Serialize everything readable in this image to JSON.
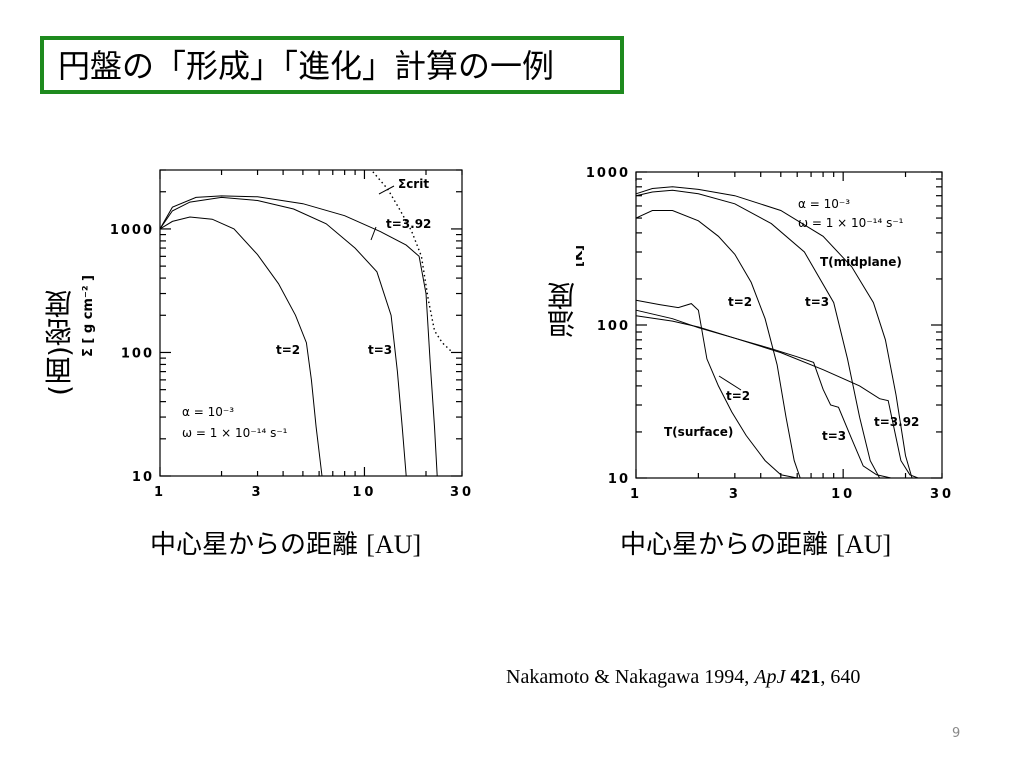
{
  "slide": {
    "title": "円盤の「形成」「進化」計算の一例",
    "citation_authors": "Nakamoto & Nakagawa 1994, ",
    "citation_journal": "ApJ",
    "citation_volume": "421",
    "citation_page": ", 640",
    "page_number": "9",
    "title_border_color": "#1e8a1e"
  },
  "chart_data": [
    {
      "type": "line",
      "ylabel_jp": "(面)密度",
      "ylabel_unit": "Σ [ g cm⁻² ]",
      "xlabel": "中心星からの距離",
      "xlabel_unit": "[AU]",
      "xscale": "log",
      "yscale": "log",
      "xlim": [
        1,
        30
      ],
      "ylim": [
        10,
        3000
      ],
      "xticks": [
        "1",
        "3",
        "10",
        "30"
      ],
      "yticks": [
        "10",
        "100",
        "1000"
      ],
      "params": [
        "α = 10⁻³",
        "ω = 1 × 10⁻¹⁴ s⁻¹"
      ],
      "annotations": [
        "t=2",
        "t=3",
        "t=3.92",
        "Σcrit"
      ],
      "series": [
        {
          "name": "t=2",
          "style": "solid",
          "x": [
            1,
            1.15,
            1.4,
            1.8,
            2.3,
            3.0,
            3.8,
            4.6,
            5.2,
            5.5,
            5.8,
            6.2
          ],
          "y": [
            1000,
            1150,
            1250,
            1200,
            1000,
            620,
            360,
            200,
            120,
            60,
            25,
            10
          ]
        },
        {
          "name": "t=3",
          "style": "solid",
          "x": [
            1,
            1.15,
            1.4,
            2,
            3,
            4.5,
            6.5,
            9,
            11.5,
            13.5,
            14.5,
            15.3,
            16
          ],
          "y": [
            1000,
            1400,
            1650,
            1800,
            1700,
            1450,
            1100,
            700,
            450,
            200,
            70,
            25,
            10
          ]
        },
        {
          "name": "t=3.92",
          "style": "solid",
          "x": [
            1,
            1.15,
            1.5,
            2,
            3,
            5,
            8,
            12,
            16,
            18.5,
            20,
            21,
            22,
            22.7
          ],
          "y": [
            1000,
            1500,
            1800,
            1850,
            1820,
            1600,
            1280,
            950,
            740,
            600,
            300,
            80,
            25,
            10
          ]
        },
        {
          "name": "Σcrit",
          "style": "dotted",
          "x": [
            11,
            13,
            15,
            17,
            19,
            20.5,
            22,
            24,
            27
          ],
          "y": [
            2900,
            2100,
            1400,
            960,
            600,
            270,
            150,
            120,
            100
          ]
        }
      ]
    },
    {
      "type": "line",
      "ylabel_jp": "温度",
      "ylabel_unit": "[K]",
      "xlabel": "中心星からの距離",
      "xlabel_unit": "[AU]",
      "xscale": "log",
      "yscale": "log",
      "xlim": [
        1,
        30
      ],
      "ylim": [
        10,
        1000
      ],
      "xticks": [
        "1",
        "3",
        "10",
        "30"
      ],
      "yticks": [
        "10",
        "100",
        "1000"
      ],
      "params": [
        "α = 10⁻³",
        "ω = 1 × 10⁻¹⁴ s⁻¹"
      ],
      "annotations": [
        "T(midplane)",
        "t=2",
        "t=3",
        "t=2",
        "t=3",
        "t=3.92",
        "T(surface)"
      ],
      "series": [
        {
          "name": "T(midplane) t=2",
          "style": "solid",
          "x": [
            1,
            1.2,
            1.5,
            2,
            2.5,
            3,
            3.6,
            4.2,
            4.8,
            5.3,
            5.8,
            6.2
          ],
          "y": [
            500,
            560,
            560,
            480,
            380,
            290,
            190,
            110,
            55,
            25,
            13,
            10
          ]
        },
        {
          "name": "T(midplane) t=3",
          "style": "solid",
          "x": [
            1,
            1.2,
            1.5,
            2,
            3,
            4.5,
            6.5,
            9,
            10.5,
            12,
            13.5,
            15
          ],
          "y": [
            700,
            740,
            760,
            720,
            620,
            460,
            300,
            140,
            60,
            25,
            13,
            10
          ]
        },
        {
          "name": "T(midplane) t=3.92",
          "style": "solid",
          "x": [
            1,
            1.2,
            1.5,
            2,
            3,
            5,
            8,
            11,
            14,
            16,
            18,
            20,
            21.5
          ],
          "y": [
            720,
            780,
            800,
            770,
            700,
            560,
            380,
            240,
            140,
            80,
            35,
            14,
            10
          ]
        },
        {
          "name": "T(surface) t=2",
          "style": "solid",
          "x": [
            1,
            1.3,
            1.6,
            1.85,
            2.0,
            2.2,
            2.5,
            2.9,
            3.4,
            4.2,
            5,
            6,
            8,
            12,
            30
          ],
          "y": [
            145,
            136,
            130,
            138,
            125,
            60,
            40,
            27,
            19,
            13,
            10.5,
            10,
            10,
            10,
            10
          ]
        },
        {
          "name": "T(surface) t=3",
          "style": "solid",
          "x": [
            1,
            1.5,
            2,
            3,
            4.5,
            6,
            7.2,
            8,
            8.7,
            9.5,
            11,
            12.5,
            14.5,
            17,
            30
          ],
          "y": [
            125,
            110,
            96,
            82,
            70,
            62,
            57,
            38,
            30,
            29,
            18,
            12,
            10.5,
            10,
            10
          ]
        },
        {
          "name": "T(surface) t=3.92",
          "style": "solid",
          "x": [
            1,
            1.5,
            2,
            3,
            5,
            8,
            12,
            15,
            16.5,
            17.5,
            19,
            21,
            23,
            30
          ],
          "y": [
            115,
            106,
            97,
            82,
            66,
            51,
            40,
            33,
            32,
            22,
            13,
            10.5,
            10,
            10
          ]
        }
      ]
    }
  ]
}
